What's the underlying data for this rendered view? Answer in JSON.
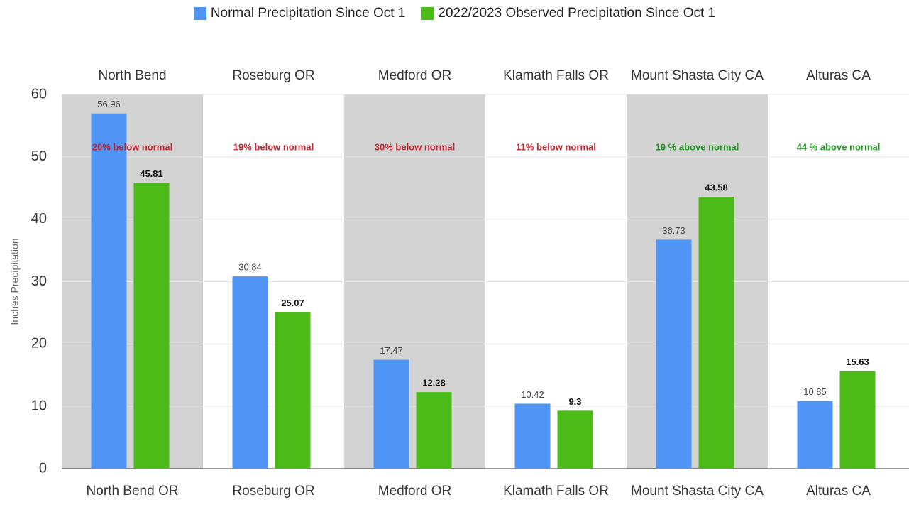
{
  "chart_data": {
    "type": "bar",
    "y_axis_label": "Inches Precipitation",
    "top_categories": [
      "North Bend",
      "Roseburg OR",
      "Medford OR",
      "Klamath Falls OR",
      "Mount Shasta City CA",
      "Alturas CA"
    ],
    "categories": [
      "North Bend OR",
      "Roseburg OR",
      "Medford OR",
      "Klamath Falls OR",
      "Mount Shasta City CA",
      "Alturas CA"
    ],
    "annotations": [
      {
        "text": "20% below normal",
        "color": "#c0272d"
      },
      {
        "text": "19% below normal",
        "color": "#c0272d"
      },
      {
        "text": "30% below normal",
        "color": "#c0272d"
      },
      {
        "text": "11% below normal",
        "color": "#c0272d"
      },
      {
        "text": "19 % above normal",
        "color": "#1e9a1e"
      },
      {
        "text": "44 % above normal",
        "color": "#1e9a1e"
      }
    ],
    "series": [
      {
        "name": "Normal Precipitation Since Oct 1",
        "color": "#5095f5",
        "values": [
          56.96,
          30.84,
          17.47,
          10.42,
          36.73,
          10.85
        ]
      },
      {
        "name": "2022/2023 Observed Precipitation Since Oct 1",
        "color": "#4cbb17",
        "values": [
          45.81,
          25.07,
          12.28,
          9.3,
          43.58,
          15.63
        ]
      }
    ],
    "ylim": [
      0,
      60
    ],
    "yticks": [
      0,
      10,
      20,
      30,
      40,
      50,
      60
    ],
    "grid": true,
    "band_color": "#d3d3d3"
  }
}
